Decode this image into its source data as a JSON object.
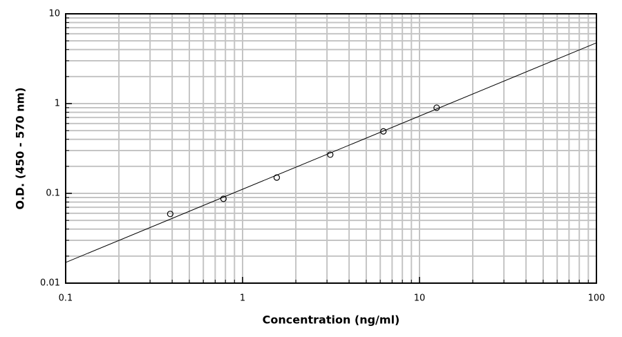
{
  "chart_data": {
    "type": "scatter",
    "x_label": "Concentration (ng/ml)",
    "y_label": "O.D. (450 - 570 nm)",
    "x": [
      0.39,
      0.78,
      1.56,
      3.13,
      6.25,
      12.5
    ],
    "values": [
      0.059,
      0.087,
      0.15,
      0.27,
      0.49,
      0.9
    ],
    "fit_line": {
      "x": [
        0.1,
        100
      ],
      "values": [
        0.017,
        4.75
      ]
    },
    "xlim": [
      0.1,
      100
    ],
    "ylim": [
      0.01,
      10
    ],
    "xticks": [
      0.1,
      1,
      10,
      100
    ],
    "yticks": [
      0.01,
      0.1,
      1,
      10
    ],
    "xscale": "log",
    "yscale": "log",
    "grid": true,
    "minor_grid": true,
    "color": "#000000"
  }
}
